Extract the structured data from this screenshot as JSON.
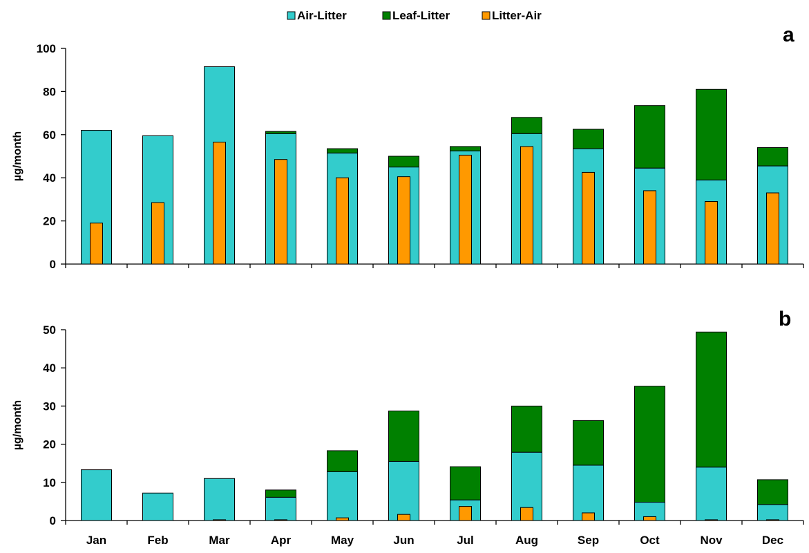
{
  "chart_data": [
    {
      "type": "bar",
      "panel_label": "a",
      "categories": [
        "Jan",
        "Feb",
        "Mar",
        "Apr",
        "May",
        "Jun",
        "Jul",
        "Aug",
        "Sep",
        "Oct",
        "Nov",
        "Dec"
      ],
      "ylabel": "µg/month",
      "ylim": [
        0,
        100
      ],
      "yticks": [
        0,
        20,
        40,
        60,
        80,
        100
      ],
      "stacked": [
        "Air-Litter",
        "Leaf-Litter"
      ],
      "overlay": "Litter-Air",
      "series": [
        {
          "name": "Air-Litter",
          "color": "#33CCCC",
          "values": [
            62,
            59.5,
            91.5,
            60.5,
            51.5,
            45,
            52.5,
            60.5,
            53.5,
            44.5,
            39,
            45.5
          ]
        },
        {
          "name": "Leaf-Litter",
          "color": "#008000",
          "values": [
            0,
            0,
            0,
            1,
            2,
            5,
            2,
            7.5,
            9,
            29,
            42,
            8.5
          ]
        },
        {
          "name": "Litter-Air",
          "color": "#FF9900",
          "values": [
            19,
            28.5,
            56.5,
            48.5,
            40,
            40.5,
            50.5,
            54.5,
            42.5,
            34,
            29,
            33
          ]
        }
      ]
    },
    {
      "type": "bar",
      "panel_label": "b",
      "categories": [
        "Jan",
        "Feb",
        "Mar",
        "Apr",
        "May",
        "Jun",
        "Jul",
        "Aug",
        "Sep",
        "Oct",
        "Nov",
        "Dec"
      ],
      "ylabel": "µg/month",
      "ylim": [
        0,
        50
      ],
      "yticks": [
        0,
        10,
        20,
        30,
        40,
        50
      ],
      "stacked": [
        "Air-Litter",
        "Leaf-Litter"
      ],
      "overlay": "Litter-Air",
      "series": [
        {
          "name": "Air-Litter",
          "color": "#33CCCC",
          "values": [
            13.3,
            7.2,
            11,
            6.1,
            12.8,
            15.5,
            5.4,
            17.9,
            14.5,
            4.8,
            14,
            4.2
          ]
        },
        {
          "name": "Leaf-Litter",
          "color": "#008000",
          "values": [
            0,
            0,
            0,
            1.9,
            5.5,
            13.2,
            8.7,
            12.1,
            11.7,
            30.4,
            35.4,
            6.5
          ]
        },
        {
          "name": "Litter-Air",
          "color": "#FF9900",
          "values": [
            0,
            0,
            0.2,
            0.2,
            0.7,
            1.6,
            3.7,
            3.4,
            2,
            1,
            0.2,
            0.2
          ]
        }
      ]
    }
  ],
  "legend": {
    "position": "top-center",
    "entries": [
      {
        "label": "Air-Litter",
        "color": "#33CCCC"
      },
      {
        "label": "Leaf-Litter",
        "color": "#008000"
      },
      {
        "label": "Litter-Air",
        "color": "#FF9900"
      }
    ]
  }
}
